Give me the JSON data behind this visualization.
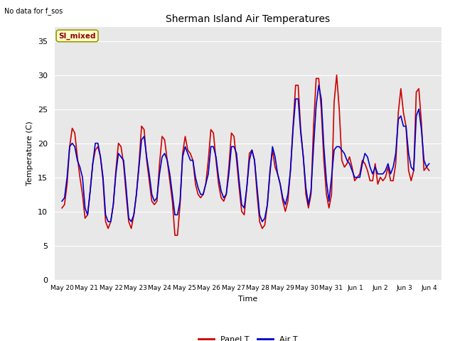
{
  "title": "Sherman Island Air Temperatures",
  "subtitle": "No data for f_sos",
  "ylabel": "Temperature (C)",
  "xlabel": "Time",
  "annotation": "SI_mixed",
  "ylim": [
    0,
    37
  ],
  "yticks": [
    0,
    5,
    10,
    15,
    20,
    25,
    30,
    35
  ],
  "bg_color": "#e8e8e8",
  "line1_color": "#cc0000",
  "line2_color": "#0000cc",
  "legend_labels": [
    "Panel T",
    "Air T"
  ],
  "x_tick_labels": [
    "May 20",
    "May 21",
    "May 22",
    "May 23",
    "May 24",
    "May 25",
    "May 26",
    "May 27",
    "May 28",
    "May 29",
    "May 30",
    "May 31",
    "Jun 1",
    "Jun 2",
    "Jun 3",
    "Jun 4"
  ],
  "panel_t": [
    10.5,
    11.0,
    14.0,
    19.5,
    22.2,
    21.5,
    18.0,
    15.0,
    12.5,
    9.0,
    9.5,
    13.0,
    17.0,
    19.0,
    19.5,
    18.0,
    14.5,
    8.5,
    7.5,
    8.5,
    11.0,
    16.0,
    20.0,
    19.5,
    17.0,
    12.5,
    8.5,
    7.5,
    9.5,
    12.5,
    17.0,
    22.5,
    22.0,
    17.5,
    14.5,
    11.5,
    11.0,
    11.5,
    17.0,
    21.0,
    20.5,
    17.5,
    14.5,
    11.5,
    6.5,
    6.5,
    11.0,
    18.5,
    21.0,
    19.0,
    18.5,
    17.5,
    14.0,
    12.5,
    12.0,
    12.5,
    14.0,
    17.5,
    22.0,
    21.5,
    17.5,
    14.0,
    12.0,
    11.5,
    12.5,
    16.5,
    21.5,
    21.0,
    17.5,
    13.5,
    10.0,
    9.5,
    13.5,
    18.5,
    19.0,
    17.5,
    12.5,
    8.5,
    7.5,
    8.0,
    11.0,
    16.0,
    19.0,
    16.5,
    15.5,
    14.0,
    11.5,
    10.0,
    11.5,
    16.0,
    22.5,
    28.5,
    28.5,
    22.0,
    18.0,
    12.5,
    10.5,
    12.5,
    22.5,
    29.5,
    29.5,
    25.0,
    17.5,
    12.5,
    10.5,
    12.5,
    26.0,
    30.0,
    25.0,
    17.5,
    16.5,
    17.0,
    18.0,
    16.5,
    14.5,
    15.0,
    15.5,
    17.5,
    17.0,
    16.0,
    14.5,
    14.5,
    17.0,
    14.0,
    15.0,
    14.5,
    15.0,
    16.5,
    14.5,
    14.5,
    17.0,
    24.5,
    28.0,
    24.5,
    22.5,
    16.0,
    14.5,
    16.0,
    27.5,
    28.0,
    23.0,
    16.0,
    16.5,
    16.0
  ],
  "air_t": [
    11.5,
    12.0,
    15.0,
    19.5,
    20.0,
    19.5,
    17.5,
    16.5,
    15.0,
    10.5,
    9.5,
    13.0,
    17.0,
    20.0,
    20.0,
    18.0,
    15.0,
    9.5,
    8.5,
    8.5,
    11.0,
    15.5,
    18.5,
    18.0,
    17.5,
    13.5,
    9.0,
    8.5,
    9.5,
    12.5,
    16.5,
    20.5,
    21.0,
    18.0,
    15.5,
    12.5,
    11.5,
    12.0,
    15.5,
    18.0,
    18.5,
    17.5,
    15.5,
    12.5,
    9.5,
    9.5,
    11.5,
    18.0,
    19.5,
    18.5,
    17.5,
    17.5,
    15.0,
    13.5,
    12.5,
    12.5,
    14.0,
    15.5,
    19.5,
    19.5,
    18.0,
    15.0,
    13.0,
    12.0,
    12.5,
    15.5,
    19.5,
    19.5,
    18.5,
    14.5,
    11.0,
    10.5,
    13.5,
    17.5,
    19.0,
    17.5,
    13.5,
    9.5,
    8.5,
    9.0,
    11.0,
    15.5,
    19.5,
    18.0,
    15.5,
    14.0,
    12.0,
    11.0,
    12.5,
    16.0,
    22.0,
    26.5,
    26.5,
    21.5,
    18.0,
    13.5,
    11.0,
    13.0,
    19.5,
    25.5,
    28.5,
    26.5,
    19.5,
    14.5,
    11.5,
    15.0,
    19.0,
    19.5,
    19.5,
    19.0,
    18.5,
    17.5,
    17.0,
    16.0,
    15.0,
    15.0,
    15.0,
    17.0,
    18.5,
    18.0,
    16.5,
    15.5,
    16.5,
    15.5,
    15.5,
    15.5,
    16.0,
    17.0,
    15.5,
    16.5,
    18.5,
    23.5,
    24.0,
    22.5,
    22.5,
    18.5,
    16.5,
    16.0,
    24.0,
    25.0,
    22.0,
    17.5,
    16.5,
    17.0
  ]
}
